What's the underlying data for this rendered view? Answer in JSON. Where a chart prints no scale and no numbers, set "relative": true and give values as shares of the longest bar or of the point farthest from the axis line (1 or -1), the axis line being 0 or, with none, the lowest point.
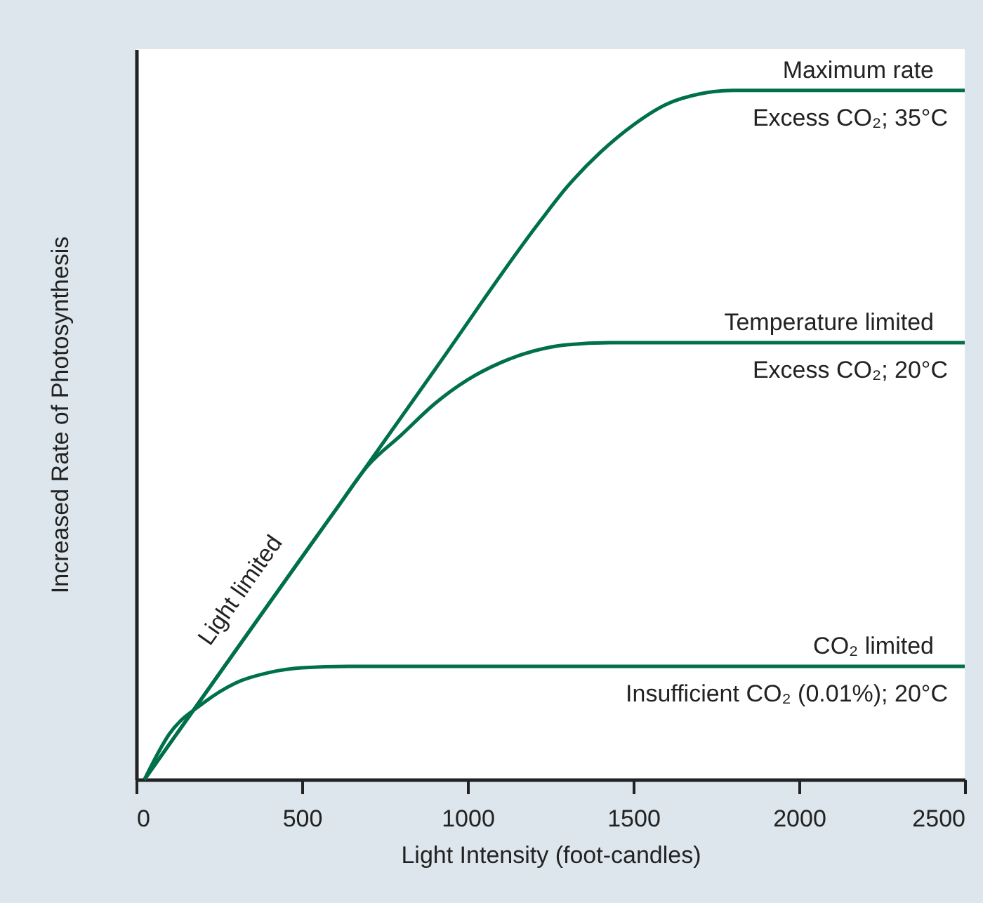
{
  "chart_data": {
    "type": "line",
    "relative": true,
    "xlabel": "Light Intensity (foot-candles)",
    "ylabel": "Increased Rate of Photosynthesis",
    "xlim": [
      0,
      2500
    ],
    "xticks": [
      0,
      500,
      1000,
      1500,
      2000,
      2500
    ],
    "marker": "none",
    "line_style": "solid",
    "series": [
      {
        "name": "Maximum rate",
        "color": "#00704a",
        "x": [
          25,
          300,
          600,
          900,
          1220,
          1300,
          1400,
          1500,
          1600,
          1700,
          1800,
          2500
        ],
        "values": [
          0,
          0.187,
          0.39,
          0.594,
          0.811,
          0.86,
          0.91,
          0.95,
          0.98,
          0.995,
          1,
          1
        ]
      },
      {
        "name": "Temperature limited",
        "color": "#00704a",
        "x": [
          25,
          300,
          600,
          700,
          800,
          900,
          1000,
          1100,
          1200,
          1300,
          1430,
          2500
        ],
        "values": [
          0,
          0.187,
          0.39,
          0.456,
          0.5,
          0.545,
          0.58,
          0.605,
          0.622,
          0.631,
          0.634,
          0.634
        ]
      },
      {
        "name": "CO₂ limited",
        "color": "#00704a",
        "x": [
          25,
          100,
          200,
          300,
          400,
          500,
          640,
          2500
        ],
        "values": [
          0,
          0.066,
          0.11,
          0.14,
          0.155,
          0.162,
          0.164,
          0.164
        ]
      }
    ],
    "annotations": [
      "Excess CO₂; 35°C",
      "Excess CO₂; 20°C",
      "Insufficient CO₂ (0.01%); 20°C",
      "Light limited"
    ]
  }
}
